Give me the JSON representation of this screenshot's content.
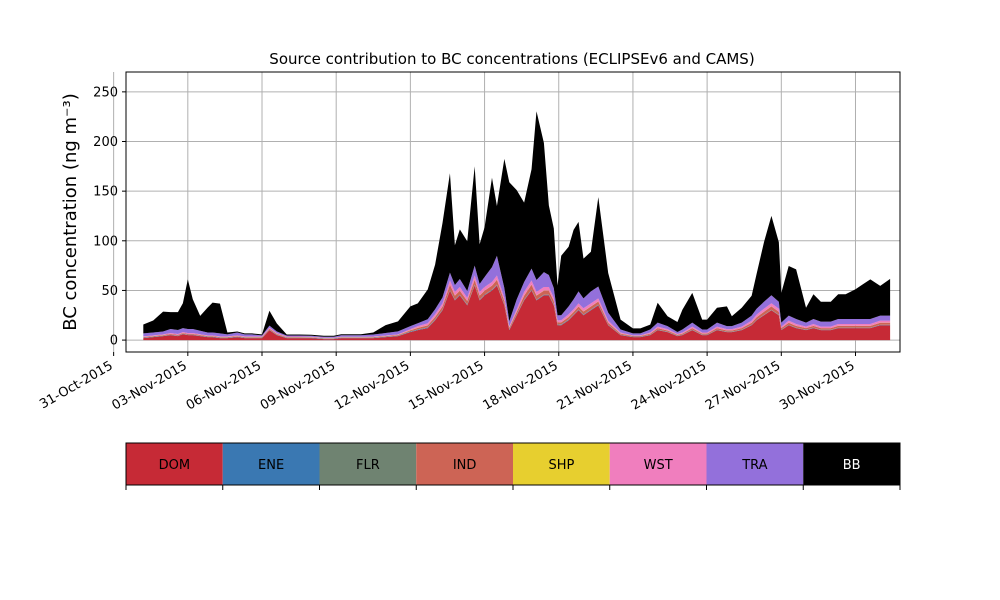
{
  "chart_data": {
    "type": "area",
    "title": "Source contribution to BC concentrations (ECLIPSEv6 and CAMS)",
    "xlabel": "",
    "ylabel": "BC concentration (ng m⁻³)",
    "ylim": [
      -12,
      270
    ],
    "xlim_days": [
      0.5,
      31.8
    ],
    "yticks": [
      0,
      50,
      100,
      150,
      200,
      250
    ],
    "xticks": [
      {
        "day": 0,
        "label": "31-Oct-2015"
      },
      {
        "day": 3,
        "label": "03-Nov-2015"
      },
      {
        "day": 6,
        "label": "06-Nov-2015"
      },
      {
        "day": 9,
        "label": "09-Nov-2015"
      },
      {
        "day": 12,
        "label": "12-Nov-2015"
      },
      {
        "day": 15,
        "label": "15-Nov-2015"
      },
      {
        "day": 18,
        "label": "18-Nov-2015"
      },
      {
        "day": 21,
        "label": "21-Nov-2015"
      },
      {
        "day": 24,
        "label": "24-Nov-2015"
      },
      {
        "day": 27,
        "label": "27-Nov-2015"
      },
      {
        "day": 30,
        "label": "30-Nov-2015"
      }
    ],
    "grid": true,
    "stacked": true,
    "x_note": "Dates from 01-Nov-2015 to 01-Dec-2015 (stacked totals read from the figure)",
    "dates": [
      "01-Nov-2015",
      "01-Nov-2015",
      "02-Nov-2015",
      "02-Nov-2015",
      "02-Nov-2015",
      "02-Nov-2015",
      "03-Nov-2015",
      "03-Nov-2015",
      "03-Nov-2015",
      "04-Nov-2015",
      "04-Nov-2015",
      "04-Nov-2015",
      "05-Nov-2015",
      "05-Nov-2015",
      "05-Nov-2015",
      "05-Nov-2015",
      "06-Nov-2015",
      "06-Nov-2015",
      "06-Nov-2015",
      "07-Nov-2015",
      "07-Nov-2015",
      "08-Nov-2015",
      "08-Nov-2015",
      "08-Nov-2015",
      "09-Nov-2015",
      "09-Nov-2015",
      "10-Nov-2015",
      "10-Nov-2015",
      "11-Nov-2015",
      "11-Nov-2015",
      "12-Nov-2015",
      "12-Nov-2015",
      "12-Nov-2015",
      "13-Nov-2015",
      "13-Nov-2015",
      "13-Nov-2015",
      "13-Nov-2015",
      "14-Nov-2015",
      "14-Nov-2015",
      "14-Nov-2015",
      "14-Nov-2015",
      "15-Nov-2015",
      "15-Nov-2015",
      "15-Nov-2015",
      "15-Nov-2015",
      "16-Nov-2015",
      "16-Nov-2015",
      "16-Nov-2015",
      "16-Nov-2015",
      "17-Nov-2015",
      "17-Nov-2015",
      "17-Nov-2015",
      "17-Nov-2015",
      "17-Nov-2015",
      "18-Nov-2015",
      "18-Nov-2015",
      "18-Nov-2015",
      "18-Nov-2015",
      "19-Nov-2015",
      "19-Nov-2015",
      "19-Nov-2015",
      "20-Nov-2015",
      "20-Nov-2015",
      "21-Nov-2015",
      "21-Nov-2015",
      "21-Nov-2015",
      "22-Nov-2015",
      "22-Nov-2015",
      "22-Nov-2015",
      "23-Nov-2015",
      "23-Nov-2015",
      "23-Nov-2015",
      "24-Nov-2015",
      "24-Nov-2015",
      "24-Nov-2015",
      "25-Nov-2015",
      "25-Nov-2015",
      "25-Nov-2015",
      "26-Nov-2015",
      "26-Nov-2015",
      "26-Nov-2015",
      "26-Nov-2015",
      "27-Nov-2015",
      "27-Nov-2015",
      "27-Nov-2015",
      "28-Nov-2015",
      "28-Nov-2015",
      "28-Nov-2015",
      "29-Nov-2015",
      "29-Nov-2015",
      "29-Nov-2015",
      "30-Nov-2015",
      "30-Nov-2015",
      "30-Nov-2015",
      "01-Dec-2015",
      "01-Dec-2015"
    ],
    "x_days": [
      1.2,
      1.6,
      2.0,
      2.3,
      2.6,
      2.8,
      3.0,
      3.2,
      3.5,
      3.8,
      4.0,
      4.3,
      4.6,
      5.0,
      5.3,
      5.6,
      6.0,
      6.3,
      6.6,
      7.0,
      7.5,
      8.0,
      8.5,
      8.9,
      9.2,
      9.6,
      10.0,
      10.5,
      11.0,
      11.5,
      12.0,
      12.3,
      12.7,
      13.0,
      13.3,
      13.6,
      13.8,
      14.0,
      14.3,
      14.6,
      14.8,
      15.0,
      15.3,
      15.5,
      15.8,
      16.0,
      16.3,
      16.6,
      16.9,
      17.1,
      17.4,
      17.6,
      17.8,
      17.95,
      18.1,
      18.4,
      18.6,
      18.8,
      19.0,
      19.3,
      19.6,
      20.0,
      20.5,
      21.0,
      21.3,
      21.7,
      22.0,
      22.4,
      22.8,
      23.0,
      23.4,
      23.8,
      24.0,
      24.4,
      24.8,
      25.0,
      25.4,
      25.8,
      26.0,
      26.3,
      26.6,
      26.9,
      27.0,
      27.3,
      27.6,
      28.0,
      28.3,
      28.6,
      29.0,
      29.3,
      29.6,
      30.0,
      30.3,
      30.6,
      31.0,
      31.4
    ],
    "series": [
      {
        "name": "DOM",
        "color": "#c62a36",
        "values": [
          2,
          3,
          4,
          5,
          4,
          6,
          5,
          5,
          4,
          3,
          3,
          2,
          2,
          3,
          2,
          2,
          2,
          10,
          5,
          2,
          2,
          2,
          1,
          1,
          2,
          2,
          2,
          2,
          3,
          4,
          8,
          10,
          12,
          20,
          30,
          50,
          40,
          45,
          35,
          55,
          40,
          45,
          50,
          55,
          35,
          10,
          25,
          40,
          50,
          40,
          45,
          45,
          35,
          15,
          15,
          20,
          25,
          30,
          25,
          30,
          35,
          15,
          5,
          3,
          3,
          5,
          10,
          8,
          4,
          5,
          10,
          5,
          5,
          10,
          8,
          8,
          10,
          15,
          20,
          25,
          30,
          25,
          10,
          15,
          12,
          10,
          12,
          10,
          10,
          12,
          12,
          12,
          12,
          12,
          15,
          15
        ]
      },
      {
        "name": "ENE",
        "color": "#3a78b2",
        "values": [
          0.3,
          0.3,
          0.3,
          0.3,
          0.3,
          0.3,
          0.3,
          0.3,
          0.3,
          0.3,
          0.3,
          0.3,
          0.3,
          0.3,
          0.3,
          0.3,
          0.3,
          0.3,
          0.3,
          0.3,
          0.3,
          0.3,
          0.3,
          0.3,
          0.3,
          0.3,
          0.3,
          0.3,
          0.3,
          0.3,
          0.5,
          0.5,
          0.5,
          0.5,
          0.5,
          0.5,
          0.5,
          0.5,
          0.5,
          0.5,
          0.5,
          0.5,
          0.5,
          0.5,
          0.5,
          0.5,
          0.5,
          0.5,
          0.5,
          0.5,
          0.5,
          0.5,
          0.5,
          0.5,
          0.5,
          0.5,
          0.5,
          0.5,
          0.5,
          0.5,
          0.5,
          0.3,
          0.3,
          0.3,
          0.3,
          0.3,
          0.3,
          0.3,
          0.3,
          0.3,
          0.3,
          0.3,
          0.3,
          0.3,
          0.3,
          0.3,
          0.3,
          0.3,
          0.3,
          0.3,
          0.3,
          0.3,
          0.3,
          0.3,
          0.3,
          0.3,
          0.3,
          0.3,
          0.3,
          0.3,
          0.3,
          0.3,
          0.3,
          0.3,
          0.3,
          0.3
        ]
      },
      {
        "name": "FLR",
        "color": "#6f8371",
        "values": [
          0.2,
          0.2,
          0.2,
          0.2,
          0.2,
          0.2,
          0.2,
          0.2,
          0.2,
          0.2,
          0.2,
          0.2,
          0.2,
          0.2,
          0.2,
          0.2,
          0.2,
          0.2,
          0.2,
          0.2,
          0.2,
          0.2,
          0.2,
          0.2,
          0.2,
          0.2,
          0.2,
          0.2,
          0.2,
          0.2,
          0.3,
          0.3,
          0.3,
          0.3,
          0.3,
          0.3,
          0.3,
          0.3,
          0.3,
          0.3,
          0.3,
          0.3,
          0.3,
          0.3,
          0.3,
          0.3,
          0.3,
          0.3,
          0.3,
          0.3,
          0.3,
          0.3,
          0.3,
          0.3,
          0.3,
          0.3,
          0.3,
          0.3,
          0.3,
          0.3,
          0.3,
          0.2,
          0.2,
          0.2,
          0.2,
          0.2,
          0.2,
          0.2,
          0.2,
          0.2,
          0.2,
          0.2,
          0.2,
          0.2,
          0.2,
          0.2,
          0.2,
          0.2,
          0.2,
          0.2,
          0.2,
          0.2,
          0.2,
          0.2,
          0.2,
          0.2,
          0.2,
          0.2,
          0.2,
          0.2,
          0.2,
          0.2,
          0.2,
          0.2,
          0.2,
          0.2
        ]
      },
      {
        "name": "IND",
        "color": "#cd6455",
        "values": [
          0.5,
          0.5,
          0.5,
          0.7,
          0.7,
          0.7,
          0.7,
          0.7,
          0.6,
          0.5,
          0.5,
          0.5,
          0.5,
          0.5,
          0.5,
          0.5,
          0.5,
          1,
          0.8,
          0.5,
          0.5,
          0.4,
          0.4,
          0.4,
          0.4,
          0.4,
          0.4,
          0.5,
          0.5,
          0.6,
          1,
          1.5,
          2,
          2.5,
          3,
          5,
          4,
          4,
          3.5,
          5,
          4,
          4,
          4,
          5,
          3.5,
          1.5,
          2.5,
          4,
          5,
          4,
          4,
          4,
          3.5,
          2,
          2,
          2.5,
          2.5,
          3,
          3,
          3,
          3,
          2,
          1,
          0.6,
          0.6,
          1,
          1.5,
          1.2,
          0.8,
          1,
          1.5,
          1,
          1,
          1.5,
          1.2,
          1.2,
          1.5,
          2,
          2.5,
          3,
          3.5,
          3,
          1.5,
          2,
          1.8,
          1.5,
          1.8,
          1.5,
          1.5,
          1.8,
          1.8,
          1.8,
          1.8,
          1.8,
          2,
          2
        ]
      },
      {
        "name": "SHP",
        "color": "#e7cf2f",
        "values": [
          0.1,
          0.1,
          0.1,
          0.1,
          0.1,
          0.1,
          0.1,
          0.1,
          0.1,
          0.1,
          0.1,
          0.1,
          0.1,
          0.1,
          0.1,
          0.1,
          0.1,
          0.1,
          0.1,
          0.1,
          0.1,
          0.1,
          0.1,
          0.1,
          0.1,
          0.1,
          0.1,
          0.1,
          0.1,
          0.1,
          0.2,
          0.2,
          0.2,
          0.2,
          0.2,
          0.2,
          0.2,
          0.2,
          0.2,
          0.2,
          0.2,
          0.2,
          0.2,
          0.2,
          0.2,
          0.2,
          0.2,
          0.2,
          0.2,
          0.2,
          0.2,
          0.2,
          0.2,
          0.2,
          0.2,
          0.2,
          0.2,
          0.2,
          0.2,
          0.2,
          0.2,
          0.1,
          0.1,
          0.1,
          0.1,
          0.1,
          0.1,
          0.1,
          0.1,
          0.1,
          0.1,
          0.1,
          0.1,
          0.1,
          0.1,
          0.1,
          0.1,
          0.1,
          0.1,
          0.1,
          0.1,
          0.1,
          0.1,
          0.1,
          0.1,
          0.1,
          0.1,
          0.1,
          0.1,
          0.1,
          0.1,
          0.1,
          0.1,
          0.1,
          0.1,
          0.1
        ]
      },
      {
        "name": "WST",
        "color": "#f07ebe",
        "values": [
          0.6,
          0.6,
          0.6,
          0.8,
          0.8,
          0.8,
          0.8,
          0.8,
          0.7,
          0.6,
          0.6,
          0.6,
          0.6,
          0.6,
          0.6,
          0.6,
          0.6,
          1,
          0.8,
          0.5,
          0.5,
          0.4,
          0.4,
          0.4,
          0.4,
          0.4,
          0.4,
          0.5,
          0.5,
          0.6,
          1,
          1.5,
          2,
          2.5,
          3,
          4,
          3.5,
          3.5,
          3,
          4,
          3.5,
          3.5,
          3.5,
          4,
          3,
          1.5,
          2.5,
          3.5,
          4,
          3.5,
          3.5,
          3.5,
          3,
          2,
          2,
          2.5,
          2.5,
          3,
          3,
          3,
          3,
          2,
          1,
          0.6,
          0.6,
          1,
          1.5,
          1.2,
          0.8,
          1,
          1.5,
          1,
          1,
          1.5,
          1.2,
          1.2,
          1.5,
          2,
          2.5,
          3,
          3,
          3,
          1.5,
          2,
          1.8,
          1.5,
          1.8,
          1.5,
          1.5,
          1.8,
          1.8,
          1.8,
          1.8,
          1.8,
          2,
          2
        ]
      },
      {
        "name": "TRA",
        "color": "#9370db",
        "values": [
          3,
          3,
          3,
          4,
          4,
          4,
          4,
          4,
          3.5,
          3,
          3,
          3,
          2,
          3,
          2,
          2,
          1,
          2,
          1.5,
          1,
          1,
          1,
          1,
          1,
          1.5,
          1.5,
          1.5,
          2,
          2.5,
          3,
          3,
          3,
          4,
          5,
          6,
          8,
          7,
          8,
          7,
          10,
          8,
          10,
          15,
          20,
          10,
          5,
          10,
          10,
          12,
          12,
          15,
          12,
          10,
          5,
          5,
          8,
          10,
          12,
          10,
          12,
          12,
          8,
          3,
          2,
          2,
          3,
          4,
          3,
          2,
          3,
          4,
          3,
          3,
          4,
          3,
          3,
          4,
          5,
          6,
          7,
          8,
          7,
          4,
          5,
          5,
          4,
          5,
          5,
          5,
          5,
          5,
          5,
          5,
          5,
          5,
          5
        ]
      },
      {
        "name": "BB",
        "color": "#000000",
        "values": [
          9,
          12,
          20,
          17,
          18,
          25,
          50,
          30,
          15,
          25,
          30,
          30,
          2,
          1,
          1,
          1,
          1,
          15,
          8,
          1,
          1,
          1,
          1,
          1,
          1,
          1,
          1,
          2,
          8,
          10,
          20,
          20,
          30,
          45,
          75,
          100,
          40,
          50,
          50,
          100,
          40,
          50,
          90,
          50,
          130,
          140,
          110,
          80,
          100,
          170,
          130,
          70,
          60,
          30,
          60,
          60,
          70,
          70,
          40,
          40,
          90,
          40,
          10,
          5,
          5,
          5,
          20,
          10,
          10,
          20,
          30,
          10,
          10,
          15,
          20,
          10,
          15,
          20,
          35,
          60,
          80,
          60,
          30,
          50,
          50,
          15,
          25,
          20,
          20,
          25,
          25,
          30,
          35,
          40,
          30,
          37
        ]
      }
    ],
    "legend": {
      "placement": "below",
      "items": [
        {
          "name": "DOM",
          "color": "#c62a36",
          "text_color": "#000000"
        },
        {
          "name": "ENE",
          "color": "#3a78b2",
          "text_color": "#000000"
        },
        {
          "name": "FLR",
          "color": "#6f8371",
          "text_color": "#000000"
        },
        {
          "name": "IND",
          "color": "#cd6455",
          "text_color": "#000000"
        },
        {
          "name": "SHP",
          "color": "#e7cf2f",
          "text_color": "#000000"
        },
        {
          "name": "WST",
          "color": "#f07ebe",
          "text_color": "#000000"
        },
        {
          "name": "TRA",
          "color": "#9370db",
          "text_color": "#000000"
        },
        {
          "name": "BB",
          "color": "#000000",
          "text_color": "#ffffff"
        }
      ]
    }
  }
}
